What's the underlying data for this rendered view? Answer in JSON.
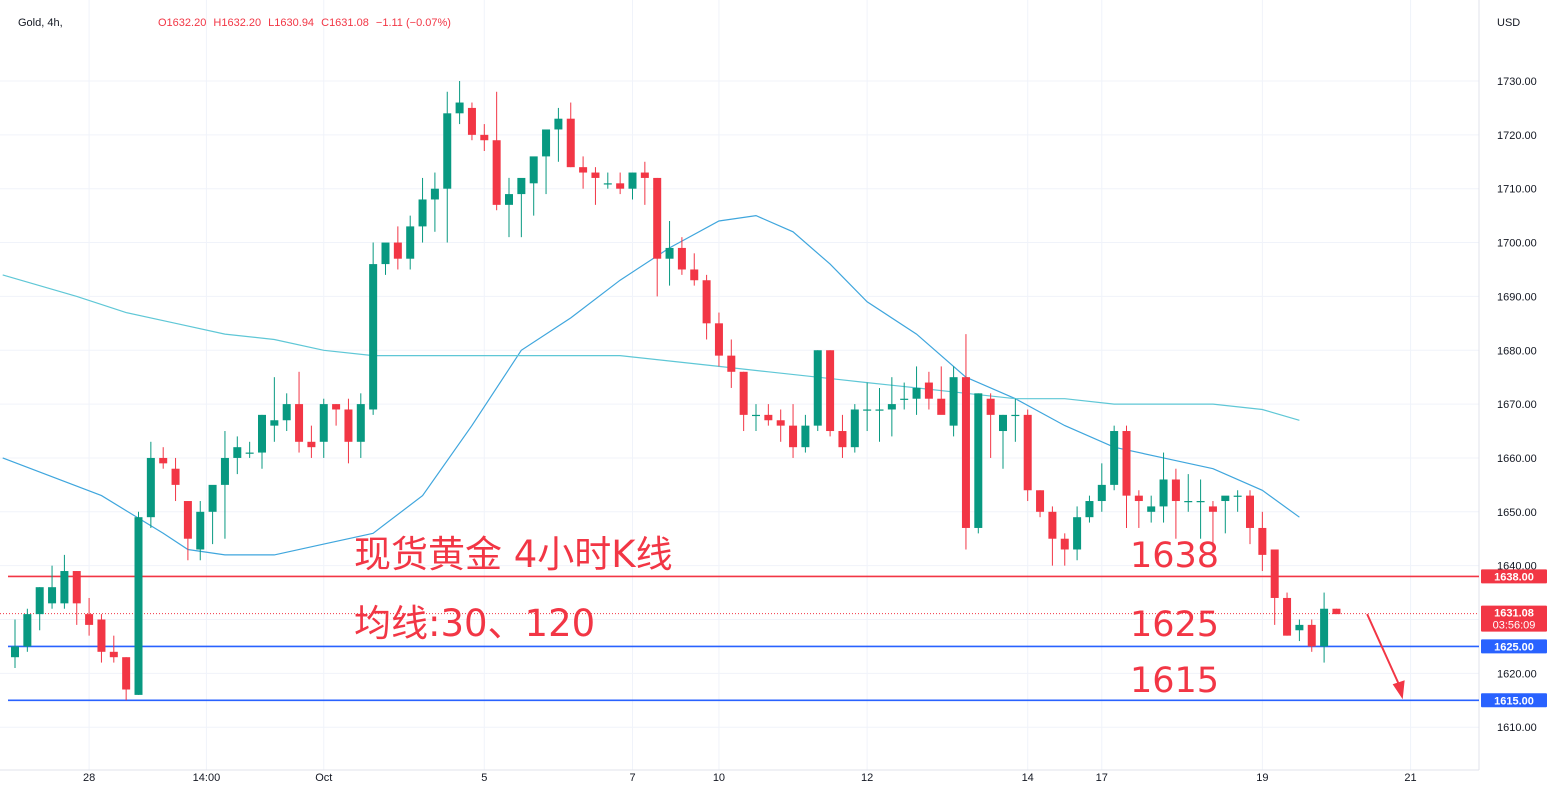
{
  "header": {
    "symbol": "Gold, 4h,",
    "open": "O1632.20",
    "high": "H1632.20",
    "low": "L1630.94",
    "close": "C1631.08",
    "change": "−1.11 (−0.07%)",
    "currency": "USD"
  },
  "annotations": {
    "title": "现货黄金 4小时K线",
    "ma_label": "均线:30、120",
    "level_1638": "1638",
    "level_1625": "1625",
    "level_1615": "1615"
  },
  "colors": {
    "up": "#089981",
    "down": "#f23645",
    "ma30": "#3fa6dd",
    "ma120": "#5fc7d6",
    "resistance": "#f23645",
    "support": "#2962ff",
    "axis_text": "#131722",
    "grid": "#f0f3fa"
  },
  "chart_data": {
    "type": "candlestick",
    "title": "",
    "ylim": [
      1604,
      1737
    ],
    "y_ticks": [
      "1730.00",
      "1720.00",
      "1710.00",
      "1700.00",
      "1690.00",
      "1680.00",
      "1670.00",
      "1660.00",
      "1650.00",
      "1640.00",
      "1630.00",
      "1620.00",
      "1610.00"
    ],
    "x_ticks": [
      {
        "label": "28",
        "index": 6
      },
      {
        "label": "14:00",
        "index": 15.5
      },
      {
        "label": "Oct",
        "index": 25
      },
      {
        "label": "5",
        "index": 38
      },
      {
        "label": "7",
        "index": 50
      },
      {
        "label": "10",
        "index": 57
      },
      {
        "label": "12",
        "index": 69
      },
      {
        "label": "14",
        "index": 82
      },
      {
        "label": "17",
        "index": 88
      },
      {
        "label": "19",
        "index": 101
      },
      {
        "label": "21",
        "index": 113
      }
    ],
    "price_labels": [
      {
        "value": 1638.0,
        "text": "1638.00",
        "color": "#f23645"
      },
      {
        "value": 1631.08,
        "text": "1631.08",
        "sub": "03:56:09",
        "color": "#f23645"
      },
      {
        "value": 1625.0,
        "text": "1625.00",
        "color": "#2962ff"
      },
      {
        "value": 1615.0,
        "text": "1615.00",
        "color": "#2962ff"
      }
    ],
    "horizontal_lines": [
      {
        "value": 1638,
        "color": "#f23645"
      },
      {
        "value": 1625,
        "color": "#2962ff"
      },
      {
        "value": 1615,
        "color": "#2962ff"
      }
    ],
    "current_price": 1631.08,
    "series": [
      {
        "name": "candles",
        "values": [
          [
            1623,
            1630,
            1621,
            1625
          ],
          [
            1625,
            1632,
            1624,
            1631
          ],
          [
            1631,
            1636,
            1628,
            1636
          ],
          [
            1633,
            1640,
            1632,
            1636
          ],
          [
            1633,
            1642,
            1632,
            1639
          ],
          [
            1639,
            1639,
            1629,
            1633
          ],
          [
            1631,
            1634,
            1627,
            1629
          ],
          [
            1630,
            1631,
            1622,
            1624
          ],
          [
            1624,
            1627,
            1622,
            1623
          ],
          [
            1623,
            1623,
            1615,
            1617
          ],
          [
            1616,
            1650,
            1616,
            1649
          ],
          [
            1649,
            1663,
            1647,
            1660
          ],
          [
            1660,
            1662,
            1658,
            1659
          ],
          [
            1658,
            1660,
            1652,
            1655
          ],
          [
            1652,
            1652,
            1641,
            1645
          ],
          [
            1643,
            1652,
            1641,
            1650
          ],
          [
            1650,
            1654,
            1644,
            1655
          ],
          [
            1655,
            1665,
            1645,
            1660
          ],
          [
            1660,
            1664,
            1657,
            1662
          ],
          [
            1661,
            1663,
            1660,
            1661
          ],
          [
            1661,
            1668,
            1658,
            1668
          ],
          [
            1666,
            1675,
            1663,
            1667
          ],
          [
            1667,
            1672,
            1665,
            1670
          ],
          [
            1670,
            1676,
            1661,
            1663
          ],
          [
            1663,
            1666,
            1660,
            1662
          ],
          [
            1663,
            1671,
            1660,
            1670
          ],
          [
            1670,
            1670,
            1666,
            1669
          ],
          [
            1669,
            1671,
            1659,
            1663
          ],
          [
            1663,
            1672,
            1660,
            1670
          ],
          [
            1669,
            1700,
            1668,
            1696
          ],
          [
            1696,
            1698,
            1694,
            1700
          ],
          [
            1700,
            1703,
            1695,
            1697
          ],
          [
            1697,
            1705,
            1695,
            1703
          ],
          [
            1703,
            1712,
            1700,
            1708
          ],
          [
            1708,
            1713,
            1702,
            1710
          ],
          [
            1710,
            1728,
            1700,
            1724
          ],
          [
            1724,
            1730,
            1722,
            1726
          ],
          [
            1725,
            1726,
            1719,
            1720
          ],
          [
            1720,
            1722,
            1717,
            1719
          ],
          [
            1719,
            1728,
            1706,
            1707
          ],
          [
            1707,
            1712,
            1701,
            1709
          ],
          [
            1709,
            1710,
            1701,
            1712
          ],
          [
            1711,
            1715,
            1705,
            1716
          ],
          [
            1716,
            1718,
            1709,
            1721
          ],
          [
            1721,
            1725,
            1715,
            1723
          ],
          [
            1723,
            1726,
            1714,
            1714
          ],
          [
            1714,
            1716,
            1710,
            1713
          ],
          [
            1713,
            1714,
            1707,
            1712
          ],
          [
            1711,
            1713,
            1710,
            1711
          ],
          [
            1711,
            1713,
            1709,
            1710
          ],
          [
            1710,
            1713,
            1708,
            1713
          ],
          [
            1713,
            1715,
            1707,
            1712
          ],
          [
            1712,
            1712,
            1690,
            1697
          ],
          [
            1697,
            1704,
            1692,
            1699
          ],
          [
            1699,
            1701,
            1694,
            1695
          ],
          [
            1695,
            1698,
            1692,
            1693
          ],
          [
            1693,
            1694,
            1682,
            1685
          ],
          [
            1685,
            1687,
            1677,
            1679
          ],
          [
            1679,
            1682,
            1673,
            1676
          ],
          [
            1676,
            1676,
            1665,
            1668
          ],
          [
            1668,
            1670,
            1665,
            1668
          ],
          [
            1668,
            1670,
            1666,
            1667
          ],
          [
            1667,
            1669,
            1663,
            1666
          ],
          [
            1666,
            1670,
            1660,
            1662
          ],
          [
            1662,
            1668,
            1661,
            1666
          ],
          [
            1666,
            1680,
            1665,
            1680
          ],
          [
            1680,
            1680,
            1664,
            1665
          ],
          [
            1665,
            1668,
            1660,
            1662
          ],
          [
            1662,
            1670,
            1661,
            1669
          ],
          [
            1669,
            1674,
            1665,
            1669
          ],
          [
            1669,
            1673,
            1663,
            1669
          ],
          [
            1669,
            1675,
            1664,
            1670
          ],
          [
            1671,
            1674,
            1669,
            1671
          ],
          [
            1671,
            1677,
            1668,
            1673
          ],
          [
            1674,
            1676,
            1669,
            1671
          ],
          [
            1671,
            1677,
            1669,
            1668
          ],
          [
            1666,
            1677,
            1664,
            1675
          ],
          [
            1675,
            1683,
            1643,
            1647
          ],
          [
            1647,
            1672,
            1646,
            1672
          ],
          [
            1671,
            1672,
            1660,
            1668
          ],
          [
            1665,
            1668,
            1658,
            1668
          ],
          [
            1668,
            1671,
            1663,
            1668
          ],
          [
            1668,
            1669,
            1652,
            1654
          ],
          [
            1654,
            1654,
            1649,
            1650
          ],
          [
            1650,
            1651,
            1640,
            1645
          ],
          [
            1645,
            1646,
            1640,
            1643
          ],
          [
            1643,
            1651,
            1641,
            1649
          ],
          [
            1649,
            1653,
            1648,
            1652
          ],
          [
            1652,
            1659,
            1650,
            1655
          ],
          [
            1655,
            1666,
            1654,
            1665
          ],
          [
            1665,
            1666,
            1647,
            1653
          ],
          [
            1653,
            1654,
            1647,
            1652
          ],
          [
            1650,
            1653,
            1648,
            1651
          ],
          [
            1651,
            1661,
            1648,
            1656
          ],
          [
            1656,
            1658,
            1645,
            1652
          ],
          [
            1652,
            1657,
            1650,
            1652
          ],
          [
            1652,
            1656,
            1645,
            1652
          ],
          [
            1651,
            1652,
            1643,
            1650
          ],
          [
            1652,
            1652,
            1646,
            1653
          ],
          [
            1653,
            1654,
            1650,
            1653
          ],
          [
            1653,
            1654,
            1644,
            1647
          ],
          [
            1647,
            1650,
            1639,
            1642
          ],
          [
            1643,
            1643,
            1629,
            1634
          ],
          [
            1634,
            1635,
            1627,
            1627
          ],
          [
            1628,
            1630,
            1626,
            1629
          ],
          [
            1629,
            1630,
            1624,
            1625
          ],
          [
            1625,
            1635,
            1622,
            1632
          ],
          [
            1632,
            1632,
            1631,
            1631
          ]
        ]
      },
      {
        "name": "MA30",
        "values": [
          [
            -1,
            1660
          ],
          [
            7,
            1653
          ],
          [
            12,
            1646
          ],
          [
            14,
            1643
          ],
          [
            17,
            1642
          ],
          [
            21,
            1642
          ],
          [
            25,
            1644
          ],
          [
            29,
            1646
          ],
          [
            33,
            1653
          ],
          [
            37,
            1666
          ],
          [
            41,
            1680
          ],
          [
            45,
            1686
          ],
          [
            49,
            1693
          ],
          [
            53,
            1699
          ],
          [
            57,
            1704
          ],
          [
            60,
            1705
          ],
          [
            63,
            1702
          ],
          [
            66,
            1696
          ],
          [
            69,
            1689
          ],
          [
            73,
            1683
          ],
          [
            77,
            1675
          ],
          [
            81,
            1671
          ],
          [
            85,
            1666
          ],
          [
            89,
            1662
          ],
          [
            93,
            1660
          ],
          [
            97,
            1658
          ],
          [
            101,
            1654
          ],
          [
            104,
            1649
          ]
        ]
      },
      {
        "name": "MA120",
        "values": [
          [
            -1,
            1694
          ],
          [
            5,
            1690
          ],
          [
            9,
            1687
          ],
          [
            13,
            1685
          ],
          [
            17,
            1683
          ],
          [
            21,
            1682
          ],
          [
            25,
            1680
          ],
          [
            29,
            1679
          ],
          [
            33,
            1679
          ],
          [
            37,
            1679
          ],
          [
            41,
            1679
          ],
          [
            45,
            1679
          ],
          [
            49,
            1679
          ],
          [
            53,
            1678
          ],
          [
            57,
            1677
          ],
          [
            61,
            1676
          ],
          [
            65,
            1675
          ],
          [
            69,
            1674
          ],
          [
            73,
            1673
          ],
          [
            77,
            1672
          ],
          [
            81,
            1671
          ],
          [
            85,
            1671
          ],
          [
            89,
            1670
          ],
          [
            93,
            1670
          ],
          [
            97,
            1670
          ],
          [
            101,
            1669
          ],
          [
            104,
            1667
          ]
        ]
      }
    ]
  }
}
